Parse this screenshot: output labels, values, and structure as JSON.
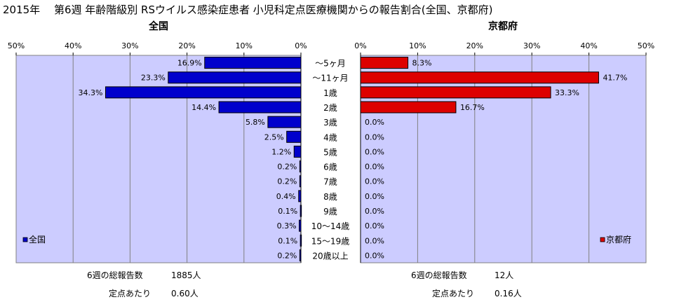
{
  "title": "2015年　 第6週 年齢階級別 RSウイルス感染症患者 小児科定点医療機関からの報告割合(全国、京都府)",
  "colors": {
    "national": "#0000cc",
    "kyoto": "#dd0000",
    "plot_bg": "#ccccff",
    "grid": "#808080"
  },
  "chart_data": [
    {
      "type": "bar",
      "orientation": "horizontal",
      "direction": "right-to-left",
      "title": "全国",
      "categories": [
        "～5ヶ月",
        "～11ヶ月",
        "1歳",
        "2歳",
        "3歳",
        "4歳",
        "5歳",
        "6歳",
        "7歳",
        "8歳",
        "9歳",
        "10～14歳",
        "15～19歳",
        "20歳以上"
      ],
      "series": [
        {
          "name": "全国",
          "values": [
            16.9,
            23.3,
            34.3,
            14.4,
            5.8,
            2.5,
            1.2,
            0.2,
            0.2,
            0.4,
            0.1,
            0.3,
            0.1,
            0.2
          ]
        }
      ],
      "value_labels": [
        "16.9%",
        "23.3%",
        "34.3%",
        "14.4%",
        "5.8%",
        "2.5%",
        "1.2%",
        "0.2%",
        "0.2%",
        "0.4%",
        "0.1%",
        "0.3%",
        "0.1%",
        "0.2%"
      ],
      "xlim": [
        0,
        50
      ],
      "ticks": [
        "0%",
        "10%",
        "20%",
        "30%",
        "40%",
        "50%"
      ],
      "legend": "bottom-left",
      "grid": true
    },
    {
      "type": "bar",
      "orientation": "horizontal",
      "direction": "left-to-right",
      "title": "京都府",
      "categories": [
        "～5ヶ月",
        "～11ヶ月",
        "1歳",
        "2歳",
        "3歳",
        "4歳",
        "5歳",
        "6歳",
        "7歳",
        "8歳",
        "9歳",
        "10～14歳",
        "15～19歳",
        "20歳以上"
      ],
      "series": [
        {
          "name": "京都府",
          "values": [
            8.3,
            41.7,
            33.3,
            16.7,
            0,
            0,
            0,
            0,
            0,
            0,
            0,
            0,
            0,
            0
          ]
        }
      ],
      "value_labels": [
        "8.3%",
        "41.7%",
        "33.3%",
        "16.7%",
        "0.0%",
        "0.0%",
        "0.0%",
        "0.0%",
        "0.0%",
        "0.0%",
        "0.0%",
        "0.0%",
        "0.0%",
        "0.0%"
      ],
      "xlim": [
        0,
        50
      ],
      "ticks": [
        "0%",
        "10%",
        "20%",
        "30%",
        "40%",
        "50%"
      ],
      "legend": "bottom-right",
      "grid": true
    }
  ],
  "stats": {
    "national": {
      "reports_label": "6週の総報告数",
      "reports_value": "1885人",
      "per_label": "定点あたり",
      "per_value": "0.60人"
    },
    "kyoto": {
      "reports_label": "6週の総報告数",
      "reports_value": "12人",
      "per_label": "定点あたり",
      "per_value": "0.16人"
    }
  }
}
